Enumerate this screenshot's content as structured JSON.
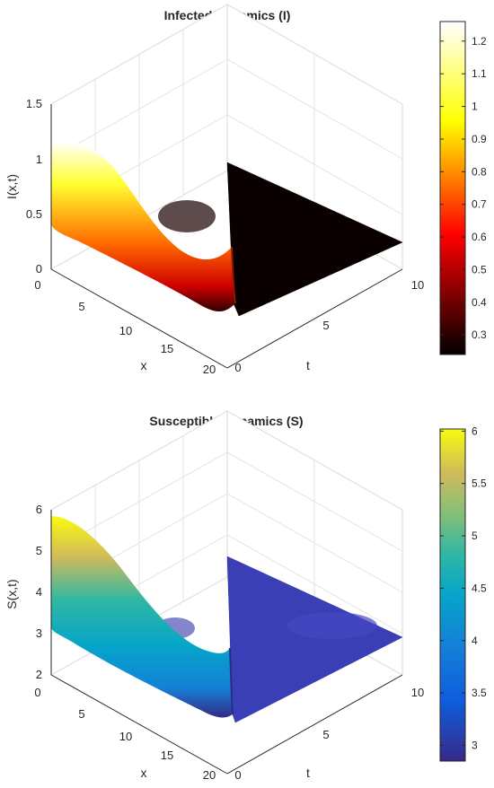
{
  "chart_data": [
    {
      "type": "surface",
      "title": "Infected Dynamics (I)",
      "xlabel": "x",
      "ylabel": "t",
      "zlabel": "I(x,t)",
      "x_ticks": [
        "0",
        "5",
        "10",
        "15",
        "20"
      ],
      "t_ticks": [
        "0",
        "5",
        "10"
      ],
      "z_ticks": [
        "0",
        "0.5",
        "1",
        "1.5"
      ],
      "xlim": [
        0,
        20
      ],
      "tlim": [
        0,
        10
      ],
      "zlim": [
        0,
        1.5
      ],
      "colormap": "hot",
      "colorbar": {
        "ticks": [
          "0.3",
          "0.4",
          "0.5",
          "0.6",
          "0.7",
          "0.8",
          "0.9",
          "1",
          "1.1",
          "1.2"
        ],
        "range": [
          0.24,
          1.26
        ]
      },
      "surface": {
        "initial_profile_t0": {
          "x": [
            0,
            1,
            2,
            3,
            4,
            5,
            6,
            7,
            8,
            9,
            10,
            11,
            12,
            13,
            14,
            15,
            16,
            17,
            18,
            19,
            20
          ],
          "I": [
            1.12,
            1.13,
            1.12,
            1.08,
            1.0,
            0.9,
            0.8,
            0.71,
            0.63,
            0.56,
            0.49,
            0.43,
            0.38,
            0.34,
            0.31,
            0.3,
            0.31,
            0.34,
            0.39,
            0.45,
            0.5
          ]
        },
        "steady_value_t_gt_0": 0.25
      },
      "grid": true
    },
    {
      "type": "surface",
      "title": "Susceptible Dynamics (S)",
      "xlabel": "x",
      "ylabel": "t",
      "zlabel": "S(x,t)",
      "x_ticks": [
        "0",
        "5",
        "10",
        "15",
        "20"
      ],
      "t_ticks": [
        "0",
        "5",
        "10"
      ],
      "z_ticks": [
        "2",
        "3",
        "4",
        "5",
        "6"
      ],
      "xlim": [
        0,
        20
      ],
      "tlim": [
        0,
        10
      ],
      "zlim": [
        2,
        6
      ],
      "colormap": "parula",
      "colorbar": {
        "ticks": [
          "3",
          "3.5",
          "4",
          "4.5",
          "5",
          "5.5",
          "6"
        ],
        "range": [
          2.85,
          6.02
        ]
      },
      "surface": {
        "initial_profile_t0": {
          "x": [
            0,
            1,
            2,
            3,
            4,
            5,
            6,
            7,
            8,
            9,
            10,
            11,
            12,
            13,
            14,
            15,
            16,
            17,
            18,
            19,
            20
          ],
          "S": [
            5.95,
            5.9,
            5.8,
            5.6,
            5.4,
            5.2,
            5.0,
            4.8,
            4.6,
            4.4,
            4.2,
            4.0,
            3.8,
            3.6,
            3.45,
            3.3,
            3.2,
            3.15,
            3.2,
            3.3,
            3.4
          ]
        },
        "steady_value_t_gt_0": 3.0
      },
      "grid": true
    }
  ]
}
